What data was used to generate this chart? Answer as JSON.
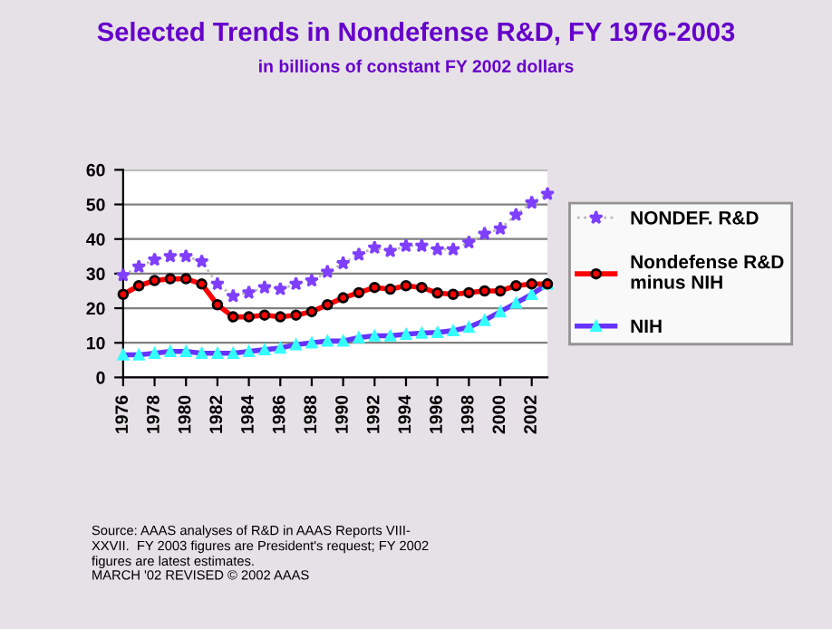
{
  "chart_data": {
    "type": "line",
    "title": "Selected Trends in Nondefense R&D, FY 1976-2003",
    "subtitle": "in billions of constant FY 2002 dollars",
    "x": [
      1976,
      1977,
      1978,
      1979,
      1980,
      1981,
      1982,
      1983,
      1984,
      1985,
      1986,
      1987,
      1988,
      1989,
      1990,
      1991,
      1992,
      1993,
      1994,
      1995,
      1996,
      1997,
      1998,
      1999,
      2000,
      2001,
      2002,
      2003
    ],
    "series": [
      {
        "name": "NONDEF. R&D",
        "color": "#7f3fff",
        "marker": "star",
        "line_style": "dotted",
        "values": [
          29.5,
          32,
          34,
          35,
          35,
          33.5,
          27,
          23.5,
          24.5,
          26,
          25.5,
          27,
          28,
          30.5,
          33,
          35.5,
          37.5,
          36.5,
          38,
          38,
          37,
          37,
          39,
          41.5,
          43,
          47,
          50.5,
          53
        ]
      },
      {
        "name": "Nondefense R&D\nminus NIH",
        "color": "#ff0000",
        "marker": "circle",
        "line_style": "solid",
        "values": [
          24,
          26.5,
          28,
          28.5,
          28.5,
          27,
          21,
          17.5,
          17.5,
          18,
          17.5,
          18,
          19,
          21,
          23,
          24.5,
          26,
          25.5,
          26.5,
          26,
          24.4,
          24,
          24.5,
          25,
          25,
          26.5,
          27,
          27
        ]
      },
      {
        "name": "NIH",
        "color": "#6633ff",
        "marker": "triangle",
        "line_style": "solid",
        "values": [
          6.5,
          6.5,
          7,
          7.5,
          7.5,
          7,
          7,
          7,
          7.5,
          8,
          8.5,
          9.5,
          10,
          10.5,
          10.5,
          11.5,
          12,
          12,
          12.5,
          12.8,
          13,
          13.5,
          14.5,
          16.5,
          19,
          21.5,
          24,
          27
        ]
      }
    ],
    "xlim": [
      1976,
      2003
    ],
    "xticks": [
      1976,
      1978,
      1980,
      1982,
      1984,
      1986,
      1988,
      1990,
      1992,
      1994,
      1996,
      1998,
      2000,
      2002
    ],
    "ylim": [
      0,
      60
    ],
    "yticks": [
      0,
      10,
      20,
      30,
      40,
      50,
      60
    ],
    "grid": "y",
    "legend": "right",
    "annotations": [
      "Source: AAAS analyses of R&D in AAAS Reports VIII-\nXXVII.  FY 2003 figures are President's request; FY 2002\nfigures are latest estimates.",
      "MARCH '02 REVISED © 2002 AAAS"
    ]
  }
}
